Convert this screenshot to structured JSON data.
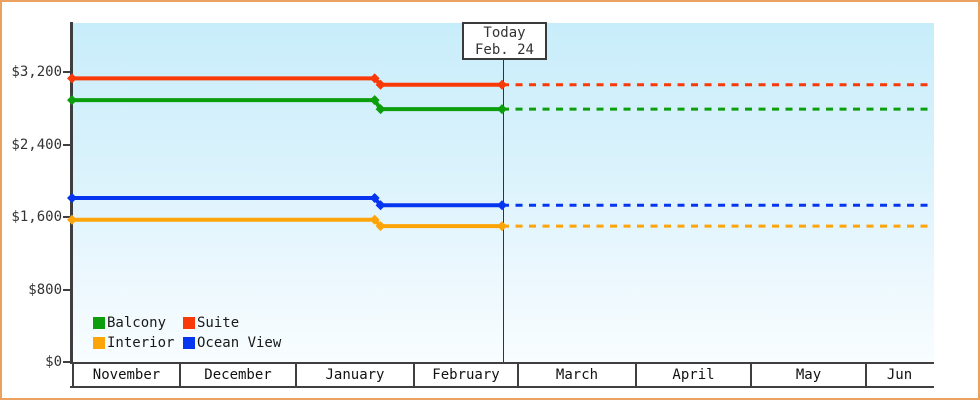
{
  "chart_data": {
    "type": "line",
    "title": "",
    "description": "Cruise cabin price history by category with dashed forecast after today marker",
    "x_categories": [
      "November",
      "December",
      "January",
      "February",
      "March",
      "April",
      "May",
      "Jun"
    ],
    "y_tick_labels": [
      "$0",
      "$800",
      "$1,600",
      "$2,400",
      "$3,200"
    ],
    "y_tick_values": [
      0,
      800,
      1600,
      2400,
      3200
    ],
    "ylim": [
      0,
      3740
    ],
    "grid": false,
    "legend_position": "bottom-left",
    "today_box": {
      "line1": "Today",
      "line2": "Feb. 24"
    },
    "today_x_index": 3.856,
    "drop_x_index": 2.7,
    "x_end_index": 8,
    "line_style": {
      "solid": "start to today",
      "dashed": "today to right edge"
    },
    "series": [
      {
        "name": "Suite",
        "color": "#f93908",
        "price_initial": 3130,
        "price_current": 3060
      },
      {
        "name": "Balcony",
        "color": "#0c9e0c",
        "price_initial": 2890,
        "price_current": 2790
      },
      {
        "name": "Ocean View",
        "color": "#0535f0",
        "price_initial": 1810,
        "price_current": 1730
      },
      {
        "name": "Interior",
        "color": "#fda408",
        "price_initial": 1570,
        "price_current": 1500
      }
    ]
  },
  "legend": {
    "items": [
      {
        "label": "Balcony",
        "color": "#0c9e0c"
      },
      {
        "label": "Suite",
        "color": "#f93908"
      },
      {
        "label": "Interior",
        "color": "#fda408"
      },
      {
        "label": "Ocean View",
        "color": "#0535f0"
      }
    ]
  },
  "colors": {
    "frame_border": "#eba15f",
    "plot_bg_top": "#c8edfa",
    "plot_bg_bottom": "#f8fdff",
    "axis": "#3f3f3f",
    "text": "#333333"
  }
}
